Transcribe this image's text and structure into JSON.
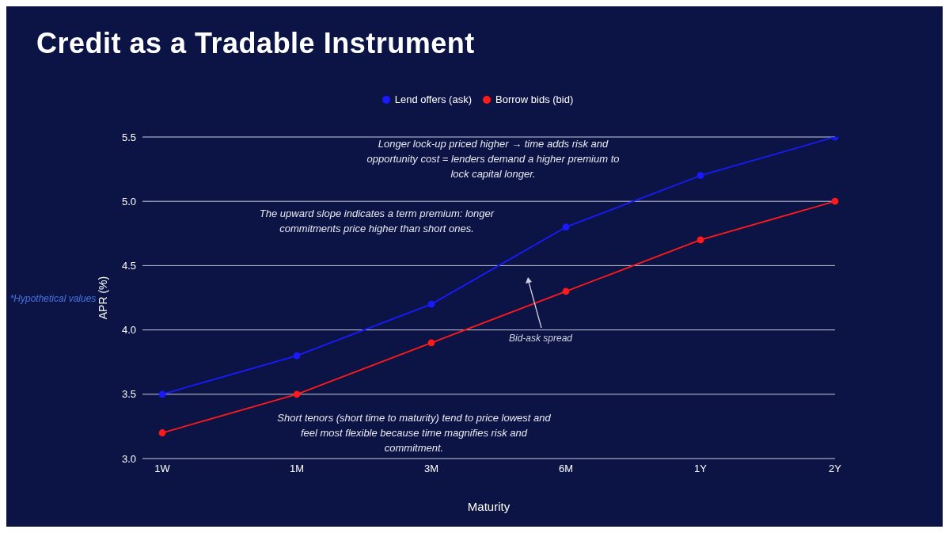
{
  "chart_data": {
    "type": "line",
    "title": "Credit as a Tradable Instrument",
    "xlabel": "Maturity",
    "ylabel": "APR (%)",
    "categories": [
      "1W",
      "1M",
      "3M",
      "6M",
      "1Y",
      "2Y"
    ],
    "series": [
      {
        "name": "Lend offers (ask)",
        "color": "#1a1aff",
        "values": [
          3.5,
          3.8,
          4.2,
          4.8,
          5.2,
          5.5
        ]
      },
      {
        "name": "Borrow bids (bid)",
        "color": "#ff1a1a",
        "values": [
          3.2,
          3.5,
          3.9,
          4.3,
          4.7,
          5.0
        ]
      }
    ],
    "ylim": [
      3.0,
      5.5
    ],
    "yticks": [
      {
        "value": 3,
        "label": "3.0"
      },
      3.5,
      {
        "value": 4,
        "label": "4.0"
      },
      4.5,
      {
        "value": 5,
        "label": "5.0"
      },
      5.5
    ],
    "grid": "y",
    "legend": "top",
    "marker": "circle",
    "line_style": "solid",
    "annotations": [
      "Longer lock-up priced higher → time adds risk and opportunity cost = lenders demand a higher premium to lock capital longer.",
      "The upward slope indicates a term premium: longer commitments price higher than short ones.",
      "Bid-ask spread",
      "Short tenors (short time to maturity) tend to price lowest and feel most flexible because time magnifies risk and commitment.",
      "*Hypothetical values"
    ]
  }
}
